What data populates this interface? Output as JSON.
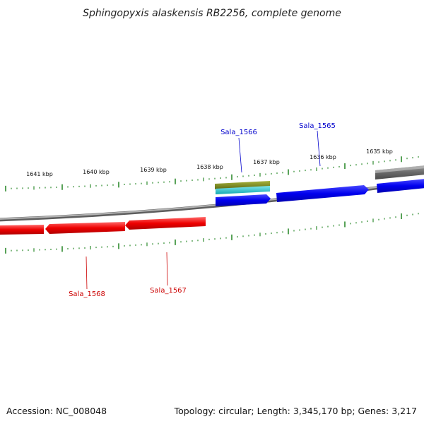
{
  "title": "Sphingopyxis alaskensis RB2256, complete genome",
  "footer": {
    "accession": "Accession: NC_008048",
    "summary": "Topology: circular; Length: 3,345,170 bp; Genes: 3,217"
  },
  "kbp_labels": [
    "1641 kbp",
    "1640 kbp",
    "1639 kbp",
    "1638 kbp",
    "1637 kbp",
    "1636 kbp",
    "1635 kbp"
  ],
  "gene_labels": [
    {
      "name": "Sala_1566",
      "strand": "forward"
    },
    {
      "name": "Sala_1565",
      "strand": "forward"
    },
    {
      "name": "Sala_1568",
      "strand": "reverse"
    },
    {
      "name": "Sala_1567",
      "strand": "reverse"
    }
  ],
  "colors": {
    "forward_gene": "#0000ee",
    "reverse_gene": "#ee0000",
    "backbone": "#8a8a8a",
    "ticks": "#2e8b2e",
    "feature_olive": "#7a8a20",
    "feature_cyan": "#20c0c8",
    "feature_grey": "#666666"
  }
}
